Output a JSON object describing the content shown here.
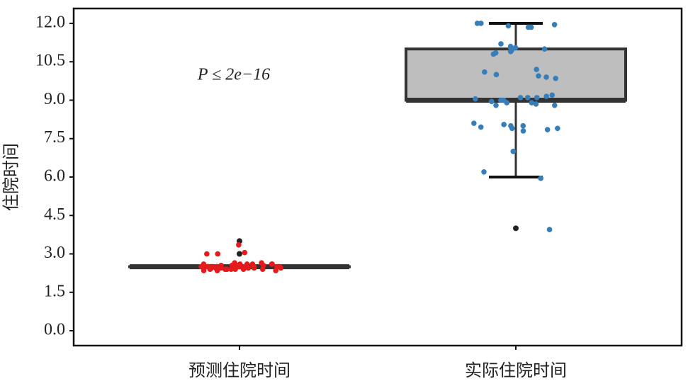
{
  "chart_data": {
    "type": "box",
    "y_label": "住院时间",
    "annotation": "P ≤ 2e−16",
    "categories": [
      "预测住院时间",
      "实际住院时间"
    ],
    "ylim": [
      -0.58,
      12.58
    ],
    "yticks": [
      {
        "value": 0,
        "label": "0.0"
      },
      1.5,
      {
        "value": 3,
        "label": "3.0"
      },
      4.5,
      {
        "value": 6,
        "label": "6.0"
      },
      7.5,
      {
        "value": 9,
        "label": "9.0"
      },
      10.5,
      {
        "value": 12,
        "label": "12.0"
      }
    ],
    "box_color": "#bebebe",
    "boxes": [
      {
        "q1": 2.5,
        "median": 2.5,
        "q3": 2.5,
        "whisker_low": 2.5,
        "whisker_high": 2.5,
        "outliers": [
          3.5,
          3.0
        ]
      },
      {
        "q1": 9.0,
        "median": 9.0,
        "q3": 11.0,
        "whisker_low": 6.0,
        "whisker_high": 12.0,
        "outliers": [
          4.0
        ]
      }
    ],
    "points": [
      {
        "color": "#e41a1c",
        "values": [
          3.35,
          3.05,
          3.0,
          3.0,
          2.65,
          2.6,
          2.6,
          2.6,
          2.6,
          2.55,
          2.55,
          2.55,
          2.55,
          2.55,
          2.5,
          2.5,
          2.5,
          2.5,
          2.5,
          2.5,
          2.5,
          2.5,
          2.5,
          2.5,
          2.5,
          2.5,
          2.5,
          2.5,
          2.45,
          2.45,
          2.45,
          2.45,
          2.45,
          2.45,
          2.45,
          2.4,
          2.4,
          2.4,
          2.4,
          2.4,
          2.4,
          2.4,
          2.35,
          2.35,
          2.35,
          2.6,
          2.55,
          2.5,
          2.45,
          2.4,
          2.65,
          2.6,
          2.5,
          2.45,
          2.4
        ]
      },
      {
        "color": "#377eb8",
        "values": [
          12.0,
          12.0,
          11.9,
          11.85,
          11.85,
          11.95,
          11.2,
          11.1,
          11.05,
          11.05,
          11.0,
          10.95,
          10.9,
          10.85,
          10.8,
          10.2,
          10.1,
          10.0,
          9.95,
          9.9,
          9.85,
          9.2,
          9.15,
          9.1,
          9.1,
          9.1,
          9.05,
          9.0,
          9.0,
          8.95,
          8.9,
          8.9,
          8.85,
          8.8,
          8.8,
          8.1,
          8.05,
          8.0,
          8.0,
          7.95,
          7.9,
          7.9,
          7.85,
          7.8,
          7.0,
          6.2,
          5.95,
          3.95
        ]
      }
    ]
  }
}
